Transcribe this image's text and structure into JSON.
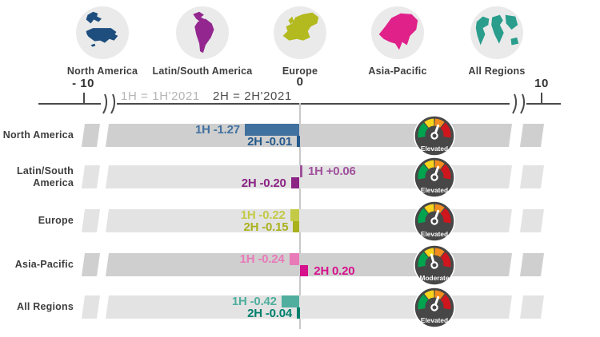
{
  "header": {
    "regions": [
      {
        "label": "North America",
        "color": "#1d4e7e"
      },
      {
        "label": "Latin/South America",
        "color": "#93278f"
      },
      {
        "label": "Europe",
        "color": "#b2ba1f"
      },
      {
        "label": "Asia-Pacific",
        "color": "#e0218a"
      },
      {
        "label": "All Regions",
        "color": "#2a9d8c"
      }
    ]
  },
  "axis": {
    "left_label": "- 10",
    "center_label": "0",
    "right_label": "10",
    "legend_1h": "1H = 1H'2021",
    "legend_2h": "2H = 2H'2021"
  },
  "chart_data": {
    "type": "bar",
    "orientation": "horizontal",
    "xlim": [
      -10,
      10
    ],
    "axis_breaks": "between -10 and plot area, and between plot area and 10",
    "zero_position": 0,
    "legend": [
      "1H = 1H'2021",
      "2H = 2H'2021"
    ],
    "rows": [
      {
        "label": "North America",
        "band": "dark",
        "bars": [
          {
            "name": "1H",
            "value": -1.27,
            "display": "1H -1.27",
            "color": "#41719f"
          },
          {
            "name": "2H",
            "value": -0.01,
            "display": "2H -0.01",
            "color": "#245a8c"
          }
        ],
        "gauge": {
          "status": "Elevated"
        }
      },
      {
        "label": "Latin/South America",
        "band": "light",
        "bars": [
          {
            "name": "1H",
            "value": 0.06,
            "display": "1H +0.06",
            "color": "#a0519c"
          },
          {
            "name": "2H",
            "value": -0.2,
            "display": "2H -0.20",
            "color": "#8b2484"
          }
        ],
        "gauge": {
          "status": "Elevated"
        }
      },
      {
        "label": "Europe",
        "band": "light",
        "bars": [
          {
            "name": "1H",
            "value": -0.22,
            "display": "1H -0.22",
            "color": "#c3ca45"
          },
          {
            "name": "2H",
            "value": -0.15,
            "display": "2H -0.15",
            "color": "#a9b21c"
          }
        ],
        "gauge": {
          "status": "Elevated"
        }
      },
      {
        "label": "Asia-Pacific",
        "band": "dark",
        "bars": [
          {
            "name": "1H",
            "value": -0.24,
            "display": "1H -0.24",
            "color": "#e87ab8"
          },
          {
            "name": "2H",
            "value": 0.2,
            "display": "2H 0.20",
            "color": "#d6118c"
          }
        ],
        "gauge": {
          "status": "Moderate"
        }
      },
      {
        "label": "All Regions",
        "band": "light",
        "bars": [
          {
            "name": "1H",
            "value": -0.42,
            "display": "1H -0.42",
            "color": "#4fae9e"
          },
          {
            "name": "2H",
            "value": -0.04,
            "display": "2H -0.04",
            "color": "#00806d"
          }
        ],
        "gauge": {
          "status": "Elevated"
        }
      }
    ]
  },
  "colors": {
    "band_dark": "#cfcfcf",
    "band_light": "#e3e3e3",
    "axis": "#4a4a4a",
    "zero_line": "#c8c8c8",
    "legend_1h_color": "#b5b5b5",
    "legend_2h_color": "#4f4f4f",
    "icon_circle": "#eaeaea",
    "gauge_body": "#474747",
    "gauge_green": "#00a44f",
    "gauge_yellow": "#f8d31c",
    "gauge_orange": "#f28c1e",
    "gauge_red": "#cf161d",
    "gauge_needle": "#ffffff"
  }
}
